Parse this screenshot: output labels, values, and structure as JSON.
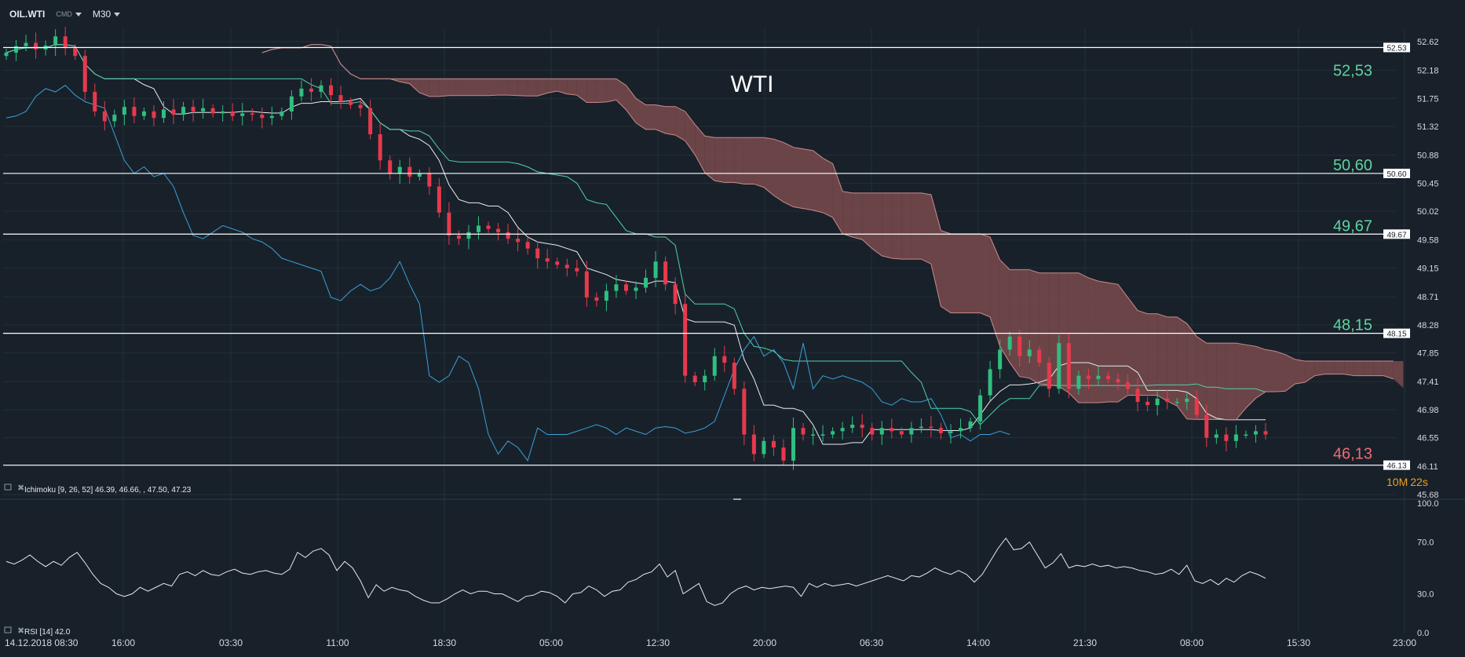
{
  "toolbar": {
    "symbol": "OIL.WTI",
    "instrument_type": "CMD",
    "timeframe": "M30"
  },
  "timer": {
    "minutes": "10",
    "minutes_unit": "M",
    "seconds": "22",
    "seconds_unit": "s"
  },
  "colors": {
    "background": "#18212a",
    "grid": "#232e38",
    "bullish": "#2fbf80",
    "bearish": "#e8394c",
    "cloud_bearish": "#7a4a4d",
    "cloud_bullish": "#6a7478",
    "tenkan": "#e8ecef",
    "kijun": "#4fd1a8",
    "chikou": "#3aa0d8",
    "level_label": "#5fd3a0",
    "level_label_low": "#ef6b73",
    "timer_min": "#e8a020"
  },
  "chart_data": [
    {
      "type": "candlestick",
      "title": "WTI",
      "indicator_label": "Ichimoku [9, 26, 52] 46.39, 46.66, , 47.50, 47.23",
      "ylim": [
        45.68,
        52.62
      ],
      "y_ticks": [
        "52.62",
        "52.18",
        "51.75",
        "51.32",
        "50.88",
        "50.45",
        "50.02",
        "49.58",
        "49.15",
        "48.71",
        "48.28",
        "47.85",
        "47.41",
        "46.98",
        "46.55",
        "46.11",
        "45.68"
      ],
      "horizontal_levels": [
        {
          "value": 52.53,
          "tag": "52.53",
          "label": "52,53"
        },
        {
          "value": 50.6,
          "tag": "50.60",
          "label": "50,60"
        },
        {
          "value": 49.67,
          "tag": "49.67",
          "label": "49,67"
        },
        {
          "value": 48.15,
          "tag": "48.15",
          "label": "48,15"
        },
        {
          "value": 46.13,
          "tag": "46.13",
          "label": "46,13"
        }
      ],
      "x_ticks": [
        "14.12.2018 08:30",
        "16:00",
        "03:30",
        "11:00",
        "18:30",
        "05:00",
        "12:30",
        "20:00",
        "06:30",
        "14:00",
        "21:30",
        "08:00",
        "15:30",
        "23:00"
      ],
      "series": [
        {
          "name": "Price",
          "values": [
            52.45,
            52.55,
            52.6,
            52.5,
            52.56,
            52.7,
            52.52,
            52.4,
            51.85,
            51.55,
            51.4,
            51.5,
            51.62,
            51.48,
            51.55,
            51.45,
            51.58,
            51.5,
            51.62,
            51.55,
            51.6,
            51.52,
            51.55,
            51.48,
            51.52,
            51.5,
            51.45,
            51.48,
            51.55,
            51.78,
            51.9,
            51.85,
            51.95,
            51.8,
            51.7,
            51.65,
            51.6,
            51.2,
            50.8,
            50.6,
            50.7,
            50.55,
            50.6,
            50.4,
            50.0,
            49.65,
            49.6,
            49.7,
            49.8,
            49.75,
            49.7,
            49.6,
            49.55,
            49.45,
            49.3,
            49.25,
            49.2,
            49.15,
            49.1,
            48.7,
            48.65,
            48.8,
            48.9,
            48.8,
            48.85,
            49.0,
            49.25,
            48.9,
            48.6,
            47.5,
            47.4,
            47.5,
            47.8,
            47.7,
            47.3,
            46.6,
            46.3,
            46.5,
            46.4,
            46.2,
            46.7,
            46.6,
            46.6,
            46.6,
            46.65,
            46.7,
            46.75,
            46.7,
            46.6,
            46.7,
            46.65,
            46.6,
            46.7,
            46.72,
            46.7,
            46.62,
            46.65,
            46.7,
            46.8,
            47.2,
            47.6,
            47.9,
            48.1,
            47.8,
            47.9,
            47.7,
            47.3,
            48.0,
            47.3,
            47.5,
            47.45,
            47.5,
            47.45,
            47.4,
            47.3,
            47.1,
            47.05,
            47.15,
            47.1,
            47.1,
            47.15,
            46.9,
            46.55,
            46.6,
            46.5,
            46.6,
            46.6,
            46.65,
            46.6
          ]
        }
      ]
    },
    {
      "type": "line",
      "title": "",
      "indicator_label": "RSI [14] 42.0",
      "ylim": [
        0,
        100
      ],
      "y_ticks": [
        "100.0",
        "70.0",
        "30.0",
        "0.0"
      ],
      "series": [
        {
          "name": "RSI [14]",
          "values": [
            55,
            53,
            56,
            60,
            55,
            51,
            55,
            52,
            58,
            62,
            54,
            45,
            38,
            35,
            30,
            28,
            30,
            35,
            32,
            35,
            38,
            36,
            45,
            47,
            44,
            48,
            45,
            44,
            47,
            49,
            46,
            45,
            47,
            48,
            46,
            45,
            49,
            62,
            58,
            63,
            65,
            60,
            48,
            55,
            50,
            40,
            27,
            37,
            32,
            35,
            33,
            32,
            28,
            25,
            23,
            23,
            26,
            30,
            33,
            30,
            32,
            32,
            30,
            30,
            27,
            24,
            28,
            29,
            32,
            31,
            28,
            23,
            30,
            31,
            36,
            33,
            28,
            32,
            33,
            39,
            41,
            45,
            47,
            53,
            43,
            48,
            30,
            34,
            38,
            24,
            21,
            23,
            30,
            34,
            36,
            33,
            35,
            34,
            35,
            36,
            35,
            28,
            38,
            35,
            38,
            36,
            37,
            38,
            36,
            38,
            40,
            42,
            44,
            42,
            40,
            44,
            43,
            46,
            50,
            47,
            45,
            48,
            45,
            39,
            45,
            55,
            65,
            73,
            64,
            65,
            70,
            60,
            50,
            54,
            61,
            50,
            52,
            51,
            53,
            51,
            52,
            50,
            51,
            50,
            48,
            47,
            45,
            46,
            49,
            45,
            52,
            40,
            38,
            41,
            37,
            42,
            39,
            44,
            47,
            45,
            42
          ]
        }
      ]
    }
  ]
}
